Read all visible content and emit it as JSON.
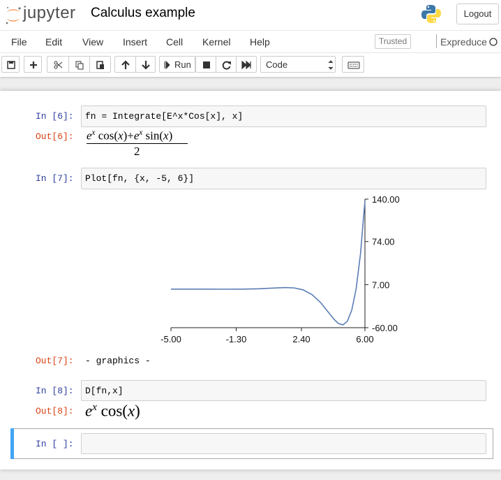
{
  "header": {
    "logo_text": "jupyter",
    "notebook_title": "Calculus example",
    "logout": "Logout"
  },
  "menu": {
    "items": [
      "File",
      "Edit",
      "View",
      "Insert",
      "Cell",
      "Kernel",
      "Help"
    ],
    "trusted": "Trusted",
    "kernel": "Expreduce"
  },
  "toolbar": {
    "run": "Run",
    "cell_type": "Code"
  },
  "cells": [
    {
      "prompt_in": "In [6]:",
      "code": "fn = Integrate[E^x*Cos[x], x]",
      "prompt_out": "Out[6]:",
      "output": {
        "numerator": [
          "e",
          "x",
          " cos(",
          "x",
          ")+",
          "e",
          "x",
          " sin(",
          "x",
          ")"
        ],
        "denominator": "2"
      }
    },
    {
      "prompt_in": "In [7]:",
      "code": "Plot[fn, {x, -5, 6}]",
      "prompt_out": "Out[7]:",
      "output": "- graphics -"
    },
    {
      "prompt_in": "In [8]:",
      "code": "D[fn,x]",
      "prompt_out": "Out[8]:",
      "output": [
        "e",
        "x",
        " cos(",
        "x",
        ")"
      ]
    },
    {
      "prompt_in": "In [ ]:"
    }
  ],
  "chart_data": {
    "type": "line",
    "color": "#5a7db5",
    "x": [
      -5,
      -4,
      -3,
      -2,
      -1,
      0,
      1,
      1.5,
      2,
      2.5,
      3,
      3.5,
      4,
      4.25,
      4.5,
      4.75,
      5,
      5.25,
      5.5,
      5.75,
      6
    ],
    "values": [
      0.004,
      0.001,
      -0.028,
      -0.09,
      -0.055,
      0.5,
      1.88,
      2.39,
      1.82,
      -1.23,
      -8.53,
      -21.3,
      -38.5,
      -47.0,
      -53.5,
      -55.6,
      -50.1,
      -33.0,
      0.4,
      55.4,
      137.4
    ],
    "xlim": [
      -5,
      6
    ],
    "ylim": [
      -60,
      140
    ],
    "xticks": [
      {
        "value": -5,
        "label": "-5.00"
      },
      {
        "value": -1.3,
        "label": "-1.30"
      },
      {
        "value": 2.4,
        "label": "2.40"
      },
      {
        "value": 6,
        "label": "6.00"
      }
    ],
    "yticks": [
      {
        "value": -60,
        "label": "-60.00"
      },
      {
        "value": 7,
        "label": "7.00"
      },
      {
        "value": 74,
        "label": "74.00"
      },
      {
        "value": 140,
        "label": "140.00"
      }
    ]
  }
}
